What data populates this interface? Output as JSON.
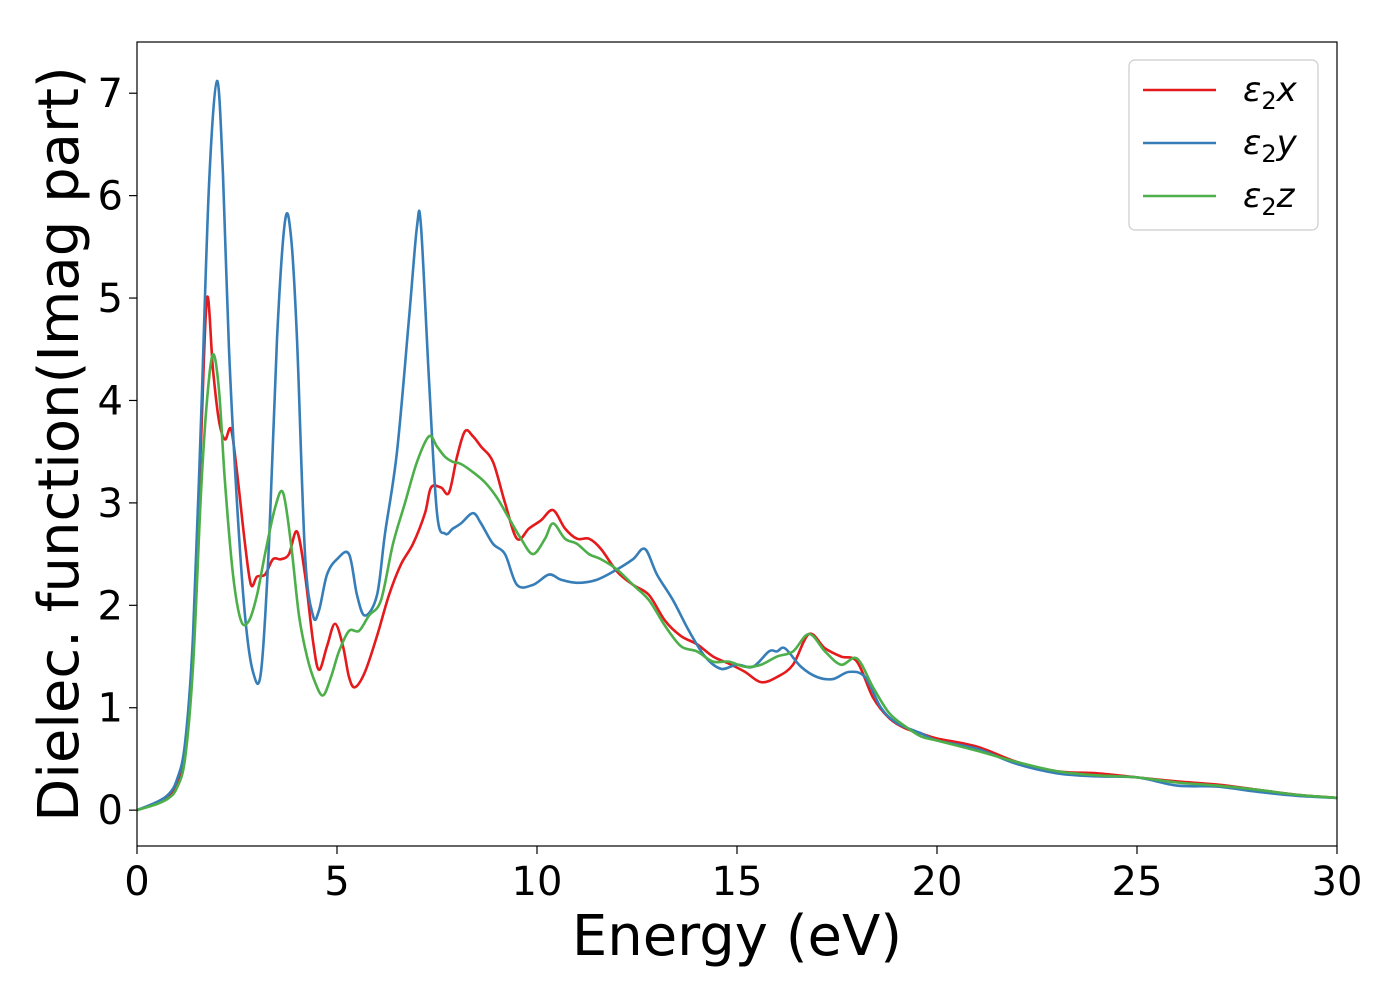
{
  "chart_data": {
    "type": "line",
    "title": "",
    "xlabel": "Energy (eV)",
    "ylabel": "Dielec. function(Imag part)",
    "xlim": [
      0,
      30
    ],
    "ylim": [
      -0.35,
      7.5
    ],
    "xticks": [
      0,
      5,
      10,
      15,
      20,
      25,
      30
    ],
    "yticks": [
      0,
      1,
      2,
      3,
      4,
      5,
      6,
      7
    ],
    "grid": false,
    "legend_position": "top-right",
    "series": [
      {
        "name": "ε₂x",
        "legend_base": "ε",
        "legend_sub": "2",
        "legend_suffix": "x",
        "color": "#e41a1c",
        "x": [
          0,
          0.5,
          0.8,
          1.0,
          1.2,
          1.4,
          1.6,
          1.75,
          1.9,
          2.05,
          2.2,
          2.35,
          2.5,
          2.7,
          2.85,
          3.0,
          3.2,
          3.4,
          3.6,
          3.8,
          4.0,
          4.2,
          4.4,
          4.55,
          4.75,
          4.95,
          5.15,
          5.3,
          5.45,
          5.7,
          6.0,
          6.3,
          6.6,
          6.9,
          7.2,
          7.35,
          7.6,
          7.8,
          8.0,
          8.2,
          8.4,
          8.6,
          8.9,
          9.2,
          9.5,
          9.8,
          10.1,
          10.4,
          10.7,
          11.0,
          11.3,
          11.6,
          12.0,
          12.4,
          12.8,
          13.2,
          13.6,
          14.0,
          14.4,
          14.8,
          15.2,
          15.6,
          16.0,
          16.4,
          16.8,
          17.2,
          17.6,
          18.0,
          18.4,
          18.8,
          19.2,
          19.6,
          20.0,
          21.0,
          22.0,
          23.0,
          24.0,
          25.0,
          26.0,
          27.0,
          28.0,
          29.0,
          30.0
        ],
        "values": [
          0,
          0.07,
          0.14,
          0.26,
          0.6,
          1.6,
          3.6,
          5.0,
          4.3,
          3.8,
          3.62,
          3.72,
          3.3,
          2.6,
          2.2,
          2.28,
          2.3,
          2.45,
          2.45,
          2.5,
          2.72,
          2.3,
          1.65,
          1.37,
          1.6,
          1.82,
          1.6,
          1.3,
          1.2,
          1.35,
          1.7,
          2.1,
          2.4,
          2.6,
          2.9,
          3.15,
          3.15,
          3.1,
          3.45,
          3.7,
          3.65,
          3.55,
          3.4,
          3.0,
          2.65,
          2.75,
          2.83,
          2.93,
          2.75,
          2.65,
          2.65,
          2.55,
          2.33,
          2.2,
          2.1,
          1.85,
          1.7,
          1.62,
          1.5,
          1.43,
          1.35,
          1.25,
          1.3,
          1.42,
          1.72,
          1.58,
          1.5,
          1.45,
          1.1,
          0.9,
          0.8,
          0.75,
          0.7,
          0.62,
          0.47,
          0.38,
          0.36,
          0.32,
          0.28,
          0.25,
          0.2,
          0.15,
          0.12
        ]
      },
      {
        "name": "ε₂y",
        "legend_base": "ε",
        "legend_sub": "2",
        "legend_suffix": "y",
        "color": "#377eb8",
        "x": [
          0,
          0.5,
          0.8,
          1.0,
          1.2,
          1.4,
          1.6,
          1.8,
          2.0,
          2.15,
          2.3,
          2.5,
          2.7,
          2.9,
          3.1,
          3.3,
          3.5,
          3.7,
          3.85,
          4.0,
          4.2,
          4.4,
          4.55,
          4.75,
          5.0,
          5.3,
          5.5,
          5.7,
          6.0,
          6.2,
          6.5,
          6.8,
          7.0,
          7.1,
          7.3,
          7.5,
          7.7,
          7.9,
          8.1,
          8.4,
          8.6,
          8.9,
          9.2,
          9.5,
          9.9,
          10.3,
          10.6,
          11.0,
          11.5,
          12.0,
          12.4,
          12.7,
          13.0,
          13.4,
          13.8,
          14.2,
          14.6,
          15.0,
          15.4,
          15.8,
          16.0,
          16.2,
          16.6,
          17.0,
          17.4,
          17.8,
          18.2,
          18.6,
          19.0,
          19.6,
          20.0,
          21.0,
          22.0,
          23.0,
          24.0,
          25.0,
          26.0,
          27.0,
          28.0,
          29.0,
          30.0
        ],
        "values": [
          0,
          0.08,
          0.16,
          0.3,
          0.65,
          1.7,
          3.8,
          6.1,
          7.12,
          6.2,
          4.5,
          3.0,
          1.9,
          1.35,
          1.35,
          2.6,
          4.6,
          5.75,
          5.6,
          4.6,
          2.5,
          1.9,
          1.95,
          2.3,
          2.45,
          2.5,
          2.1,
          1.9,
          2.1,
          2.7,
          3.5,
          4.8,
          5.7,
          5.7,
          4.2,
          2.9,
          2.7,
          2.75,
          2.8,
          2.9,
          2.8,
          2.6,
          2.5,
          2.2,
          2.2,
          2.3,
          2.25,
          2.22,
          2.25,
          2.35,
          2.45,
          2.55,
          2.3,
          2.05,
          1.75,
          1.5,
          1.38,
          1.42,
          1.4,
          1.55,
          1.55,
          1.58,
          1.4,
          1.3,
          1.28,
          1.35,
          1.3,
          1.0,
          0.85,
          0.75,
          0.68,
          0.6,
          0.45,
          0.36,
          0.33,
          0.32,
          0.24,
          0.23,
          0.18,
          0.14,
          0.12
        ]
      },
      {
        "name": "ε₂z",
        "legend_base": "ε",
        "legend_sub": "2",
        "legend_suffix": "z",
        "color": "#4daf4a",
        "x": [
          0,
          0.5,
          0.8,
          1.0,
          1.2,
          1.4,
          1.6,
          1.75,
          1.9,
          2.05,
          2.2,
          2.4,
          2.6,
          2.8,
          3.0,
          3.2,
          3.45,
          3.65,
          3.85,
          4.05,
          4.25,
          4.45,
          4.65,
          4.85,
          5.05,
          5.3,
          5.55,
          5.8,
          6.1,
          6.4,
          6.7,
          7.0,
          7.3,
          7.5,
          7.7,
          7.9,
          8.1,
          8.4,
          8.7,
          9.0,
          9.3,
          9.6,
          9.9,
          10.2,
          10.4,
          10.7,
          11.0,
          11.3,
          11.6,
          12.0,
          12.4,
          12.8,
          13.2,
          13.6,
          14.0,
          14.4,
          14.8,
          15.2,
          15.6,
          16.0,
          16.4,
          16.8,
          17.2,
          17.6,
          18.0,
          18.4,
          18.8,
          19.2,
          19.6,
          20.0,
          21.0,
          22.0,
          23.0,
          24.0,
          25.0,
          26.0,
          27.0,
          28.0,
          29.0,
          30.0
        ],
        "values": [
          0,
          0.06,
          0.12,
          0.22,
          0.5,
          1.4,
          3.1,
          4.0,
          4.45,
          4.1,
          3.2,
          2.3,
          1.85,
          1.85,
          2.1,
          2.5,
          2.95,
          3.1,
          2.6,
          1.9,
          1.5,
          1.25,
          1.12,
          1.3,
          1.55,
          1.75,
          1.75,
          1.9,
          2.05,
          2.6,
          3.0,
          3.4,
          3.65,
          3.55,
          3.45,
          3.4,
          3.38,
          3.3,
          3.2,
          3.05,
          2.85,
          2.65,
          2.5,
          2.65,
          2.8,
          2.65,
          2.6,
          2.5,
          2.45,
          2.35,
          2.2,
          2.05,
          1.8,
          1.6,
          1.55,
          1.45,
          1.45,
          1.4,
          1.42,
          1.5,
          1.55,
          1.72,
          1.55,
          1.42,
          1.48,
          1.2,
          0.95,
          0.82,
          0.72,
          0.68,
          0.58,
          0.47,
          0.38,
          0.34,
          0.32,
          0.27,
          0.24,
          0.2,
          0.15,
          0.12
        ]
      }
    ]
  }
}
